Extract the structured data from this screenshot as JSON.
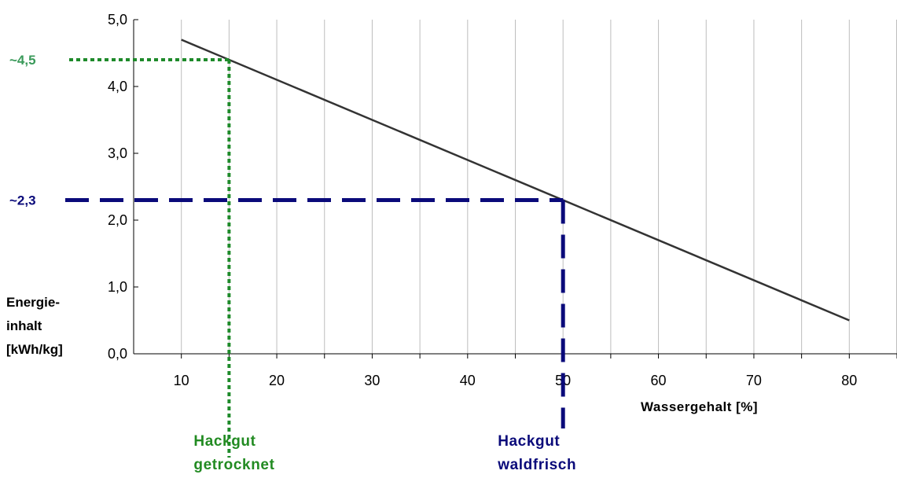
{
  "chart_data": {
    "type": "line",
    "title": "",
    "xlabel": "Wassergehalt [%]",
    "ylabel_lines": [
      "Energie-",
      "inhalt",
      "[kWh/kg]"
    ],
    "xlim": [
      5,
      85
    ],
    "ylim": [
      0,
      5
    ],
    "x_ticks": [
      10,
      20,
      30,
      40,
      50,
      60,
      70,
      80
    ],
    "x_tick_labels": [
      "10",
      "20",
      "30",
      "40",
      "50",
      "60",
      "70",
      "80"
    ],
    "y_ticks": [
      0,
      1,
      2,
      3,
      4,
      5
    ],
    "y_tick_labels": [
      "0,0",
      "1,0",
      "2,0",
      "3,0",
      "4,0",
      "5,0"
    ],
    "grid": {
      "vertical": true,
      "horizontal": false
    },
    "series": [
      {
        "x": [
          10,
          80
        ],
        "y": [
          4.7,
          0.5
        ],
        "color": "#333333"
      }
    ],
    "markers": [
      {
        "x": 15,
        "y": 4.4,
        "y_label": "~4,5",
        "label_lines": [
          "Hackgut",
          "getrocknet"
        ],
        "color": "#1e8a2a",
        "label_color": "#228b22",
        "y_label_color": "#3a9a5a",
        "style": "dotted"
      },
      {
        "x": 50,
        "y": 2.3,
        "y_label": "~2,3",
        "label_lines": [
          "Hackgut",
          "waldfrisch"
        ],
        "color": "#0a0a7a",
        "label_color": "#0a0a7a",
        "y_label_color": "#0a0a7a",
        "style": "dashed"
      }
    ]
  }
}
